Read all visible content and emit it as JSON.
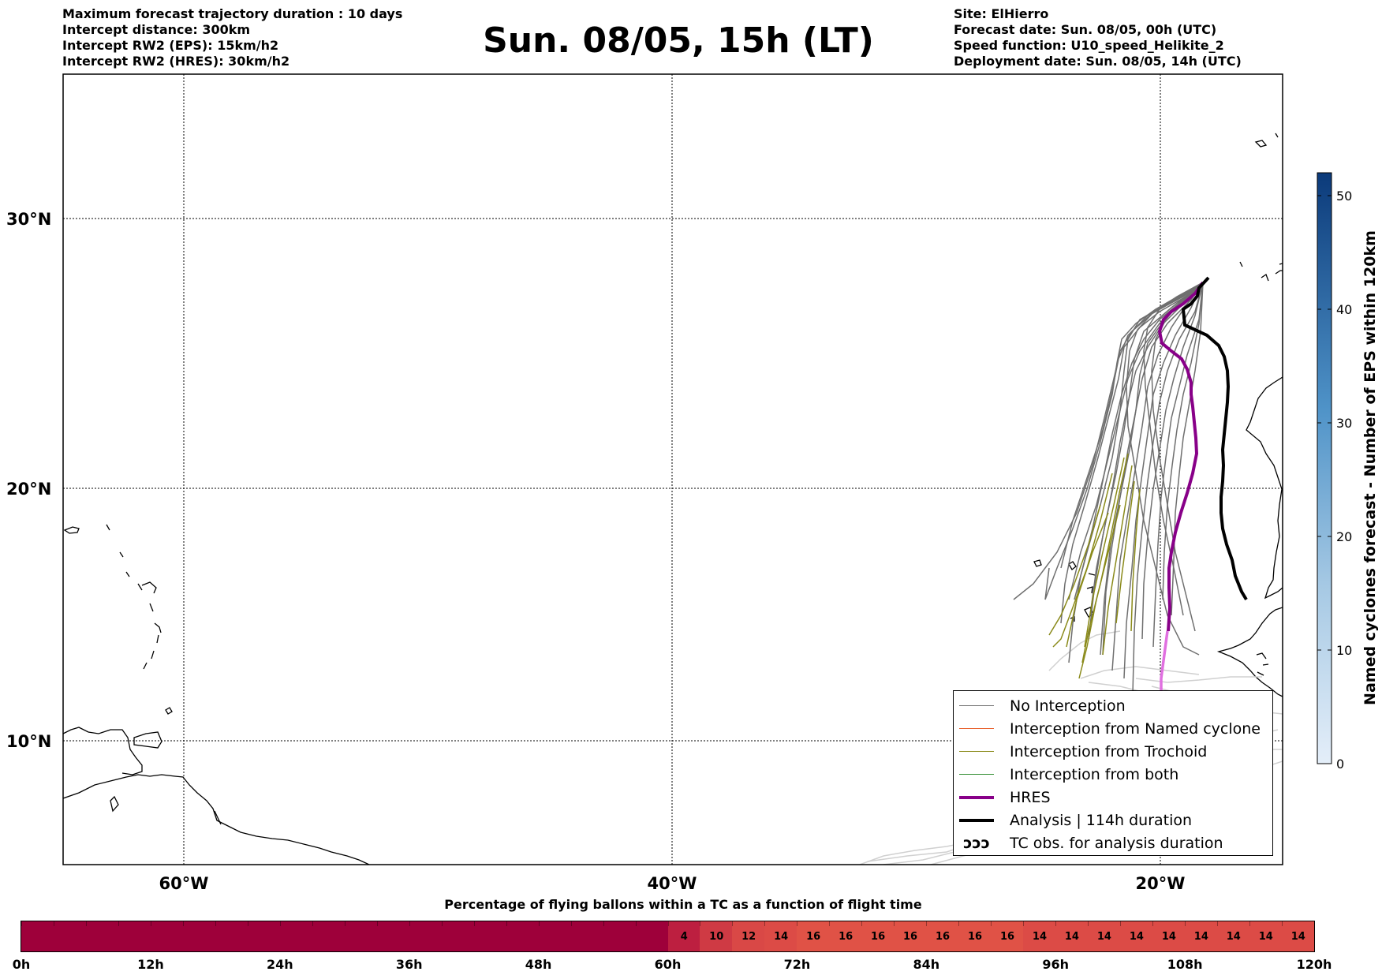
{
  "header": {
    "left_lines": [
      "Maximum forecast trajectory duration : 10 days",
      "Intercept distance: 300km",
      "Intercept RW2 (EPS):  15km/h2",
      "Intercept RW2 (HRES): 30km/h2"
    ],
    "title": "Sun. 08/05, 15h (LT)",
    "right_lines": [
      "Site: ElHierro",
      "Forecast date: Sun. 08/05, 00h (UTC)",
      "Speed function: U10_speed_Helikite_2",
      "Deployment date: Sun. 08/05, 14h (UTC)"
    ]
  },
  "map": {
    "lat_labels": [
      "30°N",
      "20°N",
      "10°N"
    ],
    "lon_labels": [
      "60°W",
      "40°W",
      "20°W"
    ],
    "lon_range": [
      -65,
      -15
    ],
    "lat_range": [
      5.3,
      34.6
    ],
    "gridlines": true,
    "colorbar": {
      "label": "Named cyclones forecast - Number of EPS within 120km",
      "ticks": [
        "0",
        "10",
        "20",
        "30",
        "40",
        "50"
      ],
      "range": [
        0,
        52
      ],
      "color_low": "#e4eef9",
      "color_high": "#0b3a7a"
    },
    "legend": {
      "items": [
        {
          "label": "No Interception",
          "color": "#777777",
          "style": "thin"
        },
        {
          "label": "Interception from Named cyclone",
          "color": "#e8602c",
          "style": "thin"
        },
        {
          "label": "Interception from Trochoid",
          "color": "#8a8a1a",
          "style": "thin"
        },
        {
          "label": "Interception from both",
          "color": "#2e8b2e",
          "style": "thin"
        },
        {
          "label": "HRES",
          "color": "#880088",
          "style": "thick"
        },
        {
          "label": "Analysis | 114h duration",
          "color": "#000000",
          "style": "thick"
        },
        {
          "label": "TC obs. for analysis duration",
          "color": "#000000",
          "style": "symbol",
          "symbol": "ↄↄↄ"
        }
      ]
    }
  },
  "timebar": {
    "title": "Percentage of flying ballons within a TC as a function of flight time",
    "tick_labels": [
      "0h",
      "12h",
      "24h",
      "36h",
      "48h",
      "60h",
      "72h",
      "84h",
      "96h",
      "108h",
      "120h"
    ],
    "hours_max": 120,
    "zero_until_hour": 60,
    "zero_color": "#9e003a",
    "segments": [
      {
        "value": "4",
        "color": "#bd1f40"
      },
      {
        "value": "10",
        "color": "#cf3a44"
      },
      {
        "value": "12",
        "color": "#d94846"
      },
      {
        "value": "14",
        "color": "#dc4b46"
      },
      {
        "value": "16",
        "color": "#e05246"
      },
      {
        "value": "16",
        "color": "#e05246"
      },
      {
        "value": "16",
        "color": "#e05246"
      },
      {
        "value": "16",
        "color": "#e05246"
      },
      {
        "value": "16",
        "color": "#e05246"
      },
      {
        "value": "16",
        "color": "#e05246"
      },
      {
        "value": "16",
        "color": "#e05246"
      },
      {
        "value": "14",
        "color": "#dc4b46"
      },
      {
        "value": "14",
        "color": "#dc4b46"
      },
      {
        "value": "14",
        "color": "#dc4b46"
      },
      {
        "value": "14",
        "color": "#dc4b46"
      },
      {
        "value": "14",
        "color": "#dc4b46"
      },
      {
        "value": "14",
        "color": "#dc4b46"
      },
      {
        "value": "14",
        "color": "#dc4b46"
      },
      {
        "value": "14",
        "color": "#dc4b46"
      },
      {
        "value": "14",
        "color": "#dc4b46"
      }
    ]
  }
}
